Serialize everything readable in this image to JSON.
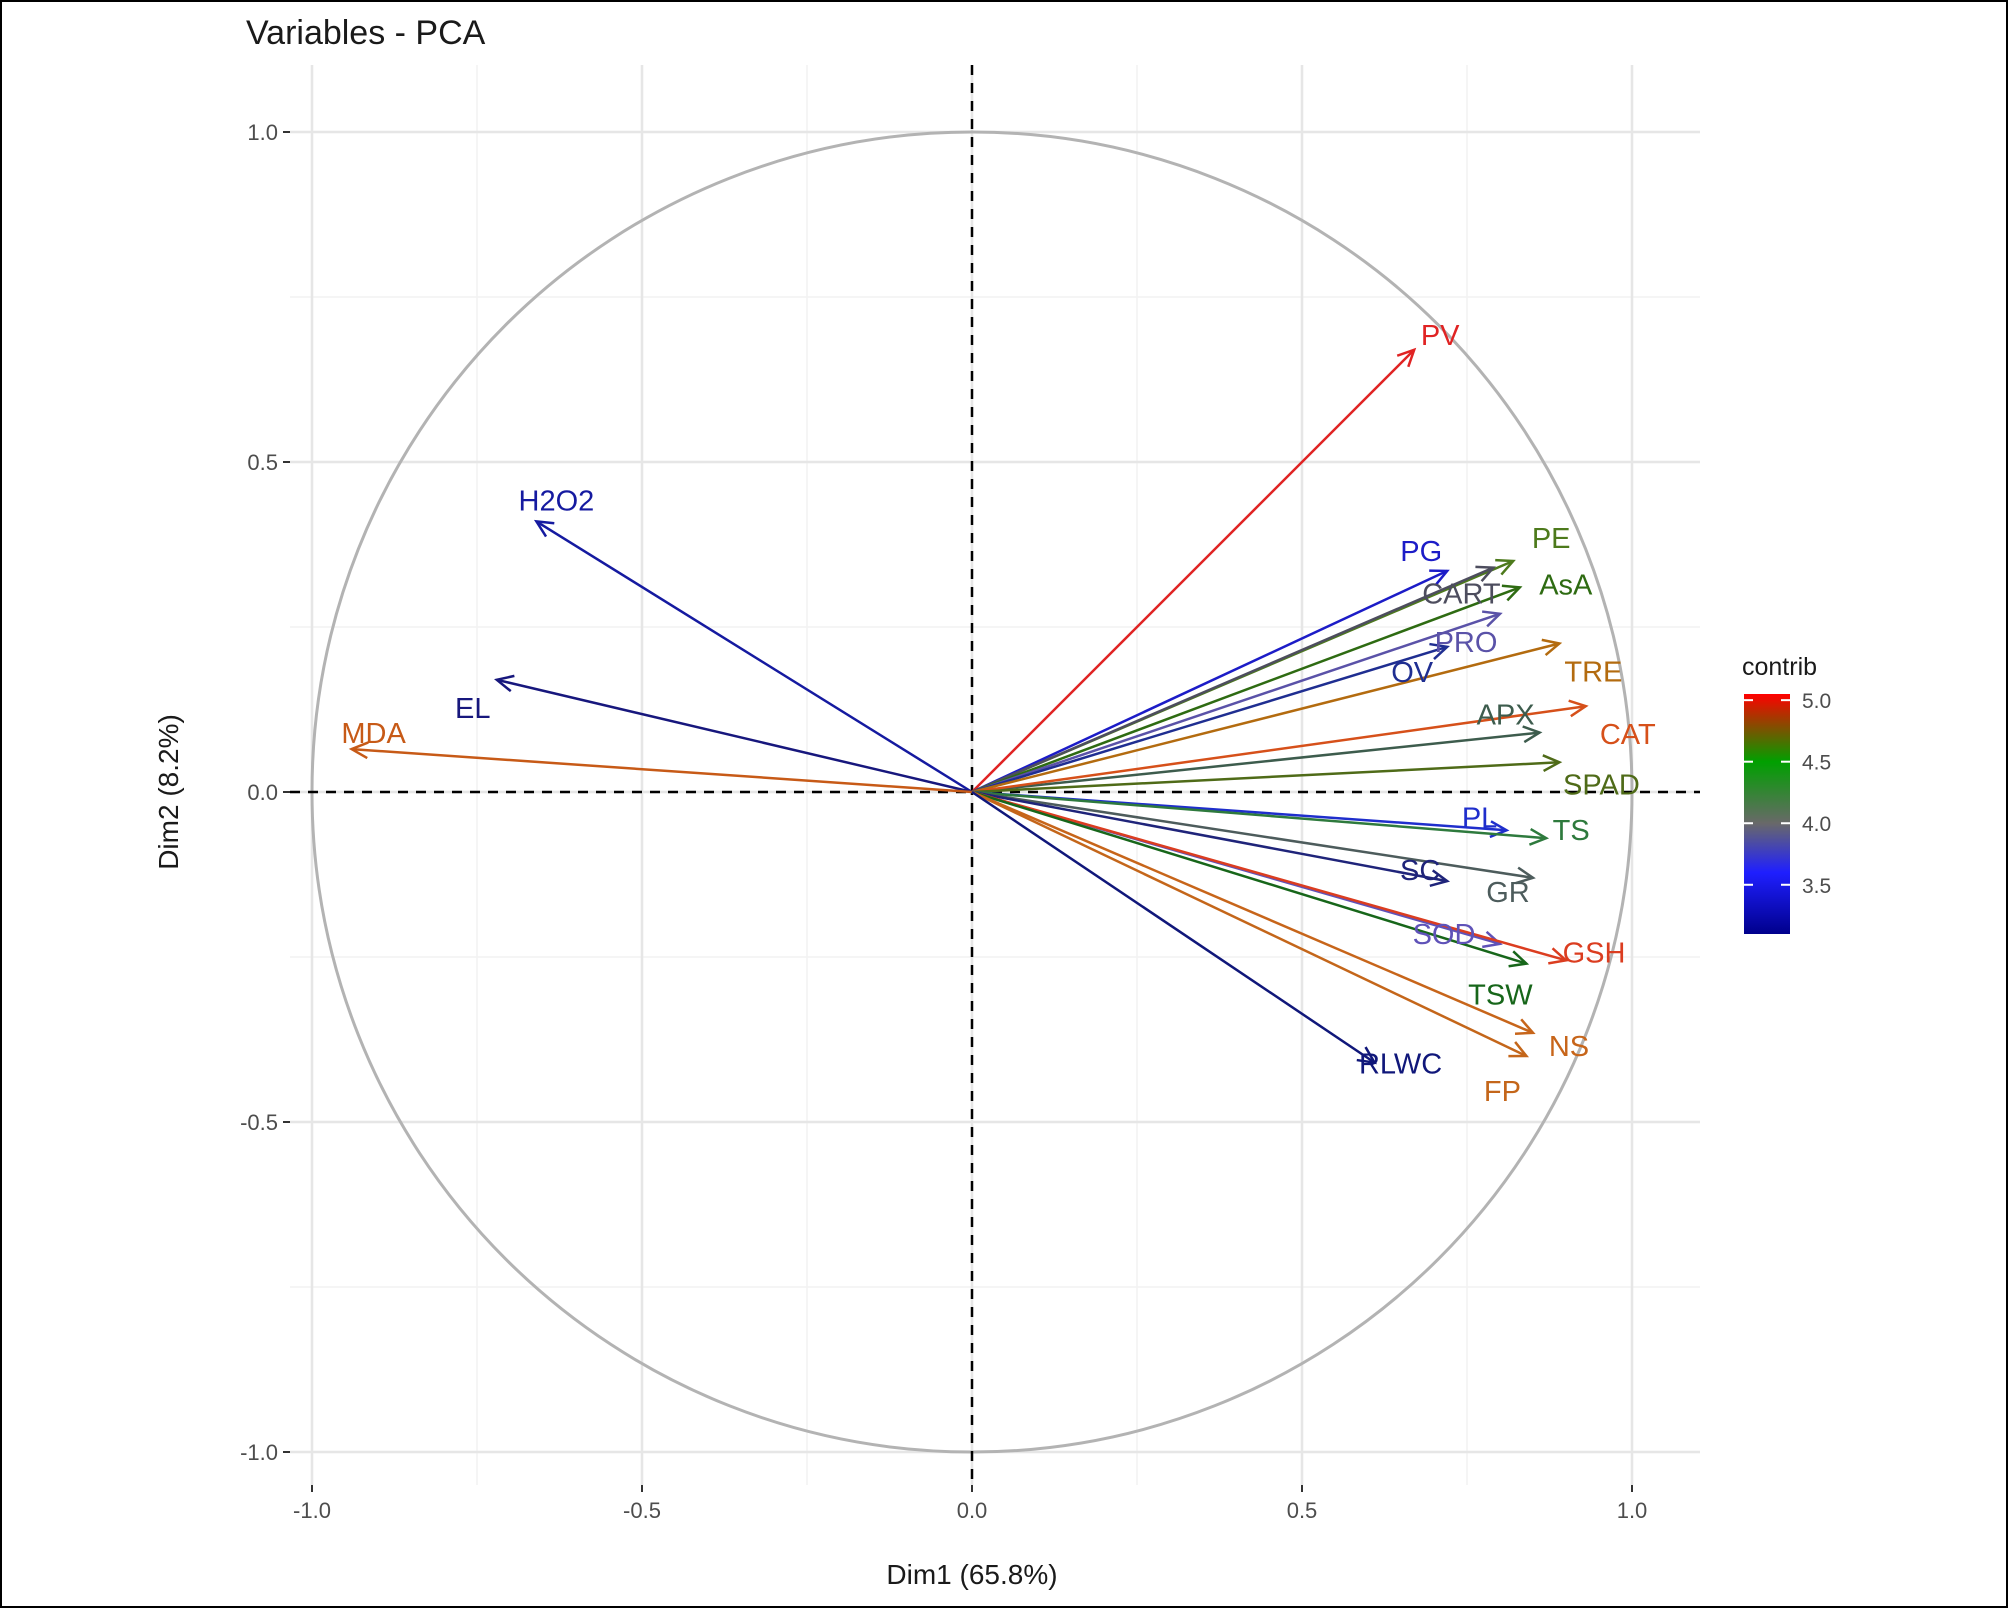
{
  "chart_data": {
    "type": "pca-variables",
    "title": "Variables - PCA",
    "xlabel": "Dim1 (65.8%)",
    "ylabel": "Dim2 (8.2%)",
    "xlim": [
      -1.0,
      1.0
    ],
    "ylim": [
      -1.0,
      1.0
    ],
    "x_ticks": [
      {
        "value": -1.0,
        "label": "-1.0"
      },
      {
        "value": -0.5,
        "label": "-0.5"
      },
      {
        "value": 0.0,
        "label": "0.0"
      },
      {
        "value": 0.5,
        "label": "0.5"
      },
      {
        "value": 1.0,
        "label": "1.0"
      }
    ],
    "y_ticks": [
      {
        "value": 1.0,
        "label": "1.0"
      },
      {
        "value": 0.5,
        "label": "0.5"
      },
      {
        "value": 0.0,
        "label": "0.0"
      },
      {
        "value": -0.5,
        "label": "-0.5"
      },
      {
        "value": -1.0,
        "label": "-1.0"
      }
    ],
    "grid": true,
    "correlation_circle": true,
    "legend": {
      "title": "contrib",
      "placement": "right",
      "range": [
        3.1,
        5.05
      ],
      "ticks": [
        {
          "value": 5.0,
          "label": "5.0"
        },
        {
          "value": 4.5,
          "label": "4.5"
        },
        {
          "value": 4.0,
          "label": "4.0"
        },
        {
          "value": 3.5,
          "label": "3.5"
        }
      ],
      "gradient": [
        {
          "value": 3.1,
          "color": "#00008b"
        },
        {
          "value": 3.6,
          "color": "#1f1fff"
        },
        {
          "value": 4.0,
          "color": "#696969"
        },
        {
          "value": 4.5,
          "color": "#00a000"
        },
        {
          "value": 5.05,
          "color": "#ff0000"
        }
      ]
    },
    "variables": [
      {
        "name": "PV",
        "x": 0.67,
        "y": 0.67,
        "contrib": 5.05,
        "color": "#e02323"
      },
      {
        "name": "H2O2",
        "x": -0.66,
        "y": 0.41,
        "contrib": 3.2,
        "color": "#151aa0"
      },
      {
        "name": "EL",
        "x": -0.72,
        "y": 0.17,
        "contrib": 3.2,
        "color": "#17177d"
      },
      {
        "name": "MDA",
        "x": -0.94,
        "y": 0.065,
        "contrib": 4.8,
        "color": "#c75a17"
      },
      {
        "name": "PG",
        "x": 0.72,
        "y": 0.335,
        "contrib": 3.4,
        "color": "#1c1cc7"
      },
      {
        "name": "PE",
        "x": 0.82,
        "y": 0.35,
        "contrib": 4.5,
        "color": "#4d7a1c"
      },
      {
        "name": "CART",
        "x": 0.79,
        "y": 0.34,
        "contrib": 4.0,
        "color": "#4d4d5e"
      },
      {
        "name": "AsA",
        "x": 0.83,
        "y": 0.31,
        "contrib": 4.4,
        "color": "#2e6b12"
      },
      {
        "name": "PRO",
        "x": 0.8,
        "y": 0.27,
        "contrib": 3.8,
        "color": "#5a52a8"
      },
      {
        "name": "OV",
        "x": 0.72,
        "y": 0.22,
        "contrib": 3.3,
        "color": "#1f2e91"
      },
      {
        "name": "TRE",
        "x": 0.89,
        "y": 0.225,
        "contrib": 4.7,
        "color": "#b36b0f"
      },
      {
        "name": "APX",
        "x": 0.86,
        "y": 0.09,
        "contrib": 4.2,
        "color": "#3d5c4d"
      },
      {
        "name": "CAT",
        "x": 0.93,
        "y": 0.13,
        "contrib": 4.9,
        "color": "#d6501a"
      },
      {
        "name": "SPAD",
        "x": 0.89,
        "y": 0.045,
        "contrib": 4.5,
        "color": "#4f6b18"
      },
      {
        "name": "PL",
        "x": 0.81,
        "y": -0.058,
        "contrib": 3.4,
        "color": "#1f2ecc"
      },
      {
        "name": "TS",
        "x": 0.87,
        "y": -0.07,
        "contrib": 4.4,
        "color": "#2e7a3d"
      },
      {
        "name": "GR",
        "x": 0.85,
        "y": -0.13,
        "contrib": 4.1,
        "color": "#4d5c5c"
      },
      {
        "name": "SC",
        "x": 0.72,
        "y": -0.135,
        "contrib": 3.3,
        "color": "#1f247a"
      },
      {
        "name": "SOD",
        "x": 0.8,
        "y": -0.23,
        "contrib": 3.9,
        "color": "#5f52b8"
      },
      {
        "name": "GSH",
        "x": 0.9,
        "y": -0.255,
        "contrib": 4.95,
        "color": "#db3d20"
      },
      {
        "name": "TSW",
        "x": 0.84,
        "y": -0.26,
        "contrib": 4.4,
        "color": "#17661a"
      },
      {
        "name": "NS",
        "x": 0.85,
        "y": -0.365,
        "contrib": 4.8,
        "color": "#c7651a"
      },
      {
        "name": "FP",
        "x": 0.84,
        "y": -0.4,
        "contrib": 4.7,
        "color": "#c4661a"
      },
      {
        "name": "RLWC",
        "x": 0.61,
        "y": -0.41,
        "contrib": 3.15,
        "color": "#10177a"
      }
    ]
  }
}
